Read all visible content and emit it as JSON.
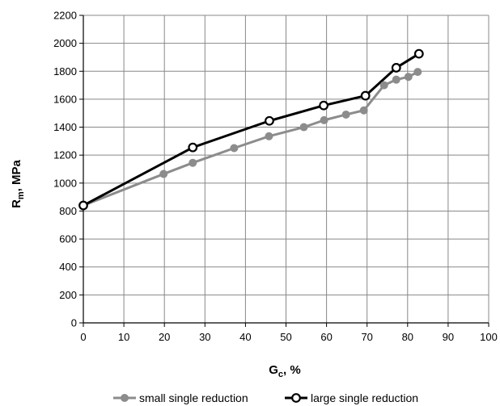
{
  "chart_data": {
    "type": "line",
    "xlabel": "G",
    "xlabel_sub": "c",
    "xlabel_suffix": ", %",
    "ylabel": "R",
    "ylabel_sub": "m",
    "ylabel_suffix": ", MPa",
    "xlim": [
      0,
      100
    ],
    "ylim": [
      0,
      2200
    ],
    "xticks": [
      0,
      10,
      20,
      30,
      40,
      50,
      60,
      70,
      80,
      90,
      100
    ],
    "yticks": [
      0,
      200,
      400,
      600,
      800,
      1000,
      1200,
      1400,
      1600,
      1800,
      2000,
      2200
    ],
    "grid": true,
    "legend_position": "bottom",
    "series": [
      {
        "name": "small single reduction",
        "color": "#8c8c8c",
        "marker": "filled-circle",
        "points": [
          [
            0,
            840
          ],
          [
            19.8,
            1065
          ],
          [
            27,
            1145
          ],
          [
            37.2,
            1250
          ],
          [
            45.8,
            1335
          ],
          [
            54.4,
            1400
          ],
          [
            59.4,
            1450
          ],
          [
            64.8,
            1490
          ],
          [
            69.2,
            1520
          ],
          [
            74.2,
            1700
          ],
          [
            77.2,
            1740
          ],
          [
            80.2,
            1760
          ],
          [
            82.5,
            1795
          ]
        ]
      },
      {
        "name": "large single reduction",
        "color": "#000000",
        "marker": "open-circle",
        "points": [
          [
            0,
            840
          ],
          [
            27,
            1255
          ],
          [
            45.9,
            1445
          ],
          [
            59.3,
            1555
          ],
          [
            69.6,
            1625
          ],
          [
            77.2,
            1825
          ],
          [
            82.8,
            1925
          ]
        ]
      }
    ]
  }
}
